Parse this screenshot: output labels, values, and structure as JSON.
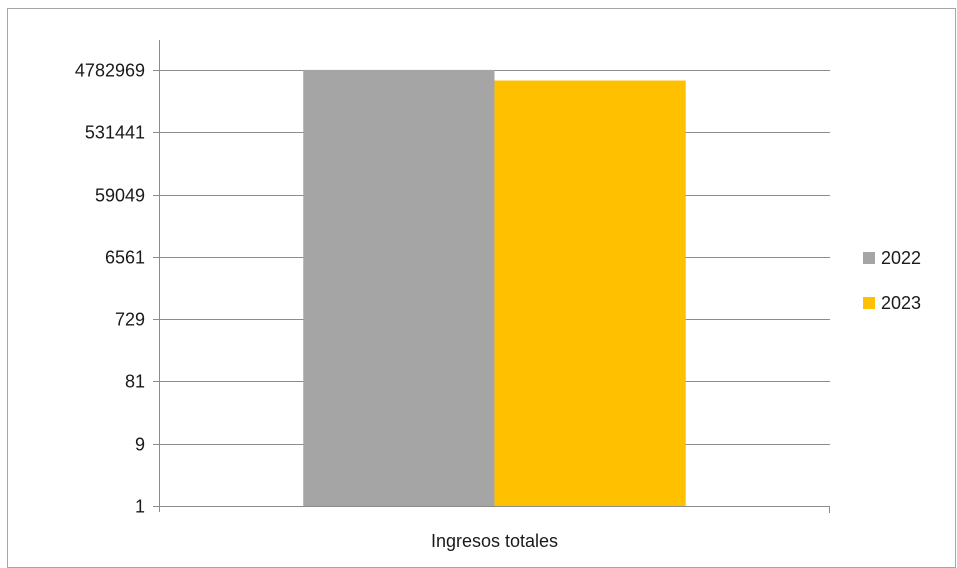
{
  "chart_data": {
    "type": "bar",
    "scale": "log",
    "log_base": 9,
    "categories": [
      "Ingresos totales"
    ],
    "series": [
      {
        "name": "2022",
        "values": [
          4800000
        ],
        "color": "#a5a5a5"
      },
      {
        "name": "2023",
        "values": [
          3300000
        ],
        "color": "#ffc000"
      }
    ],
    "y_ticks": [
      "1",
      "9",
      "81",
      "729",
      "6561",
      "59049",
      "531441",
      "4782969"
    ],
    "ylim": [
      1,
      4782969
    ],
    "grid": true,
    "legend_position": "right",
    "title": "",
    "xlabel": "",
    "ylabel": ""
  }
}
